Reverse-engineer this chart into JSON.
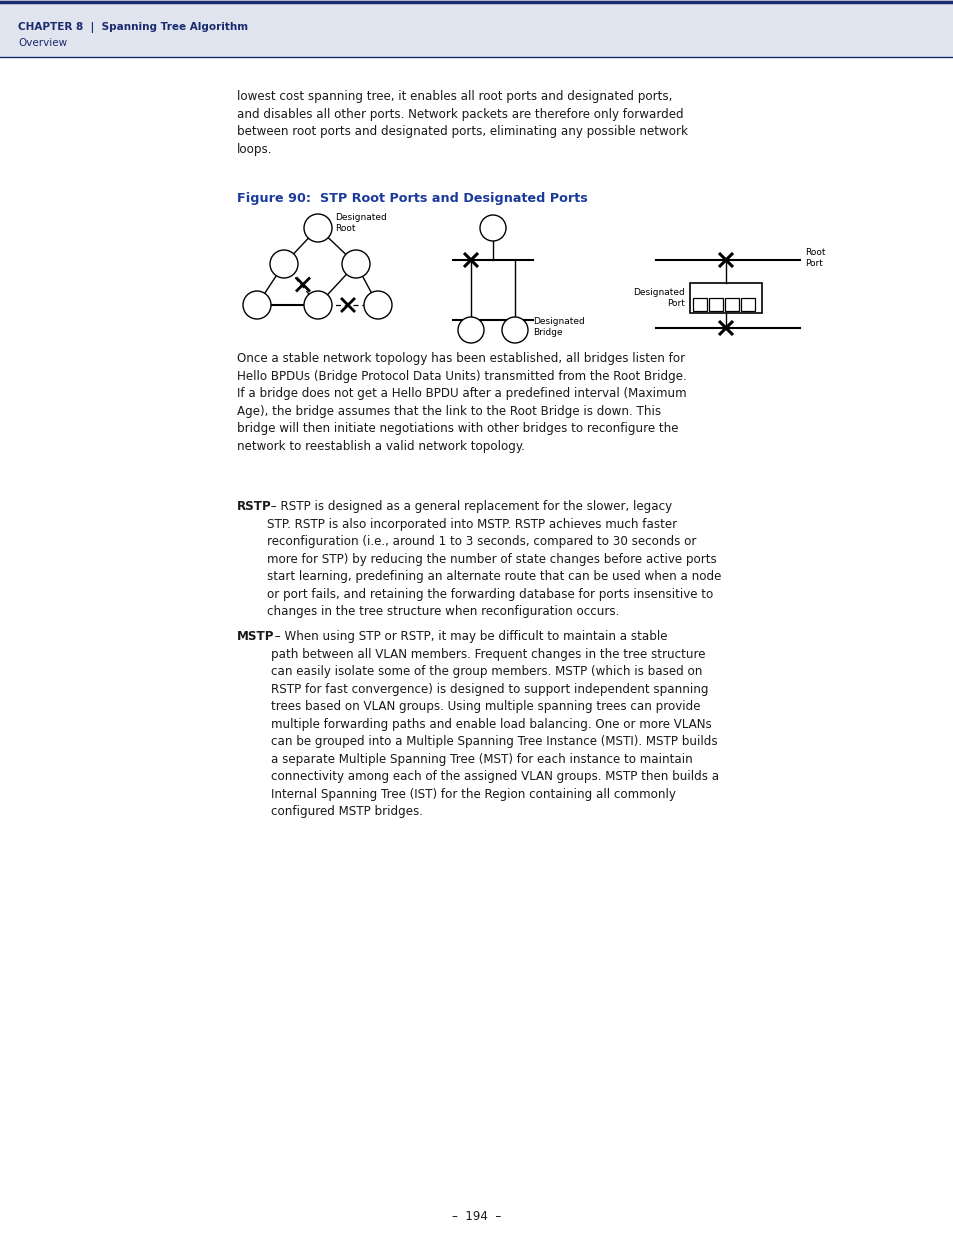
{
  "page_bg": "#ffffff",
  "header_bg": "#e0e4ee",
  "header_line_color": "#1a2a6e",
  "header_text_color": "#1a2a6e",
  "header_chapter": "CʟAPTER 8  |  Spanning Tree Algorithm",
  "header_overview": "Overview",
  "figure_title": "Figure 90:  STP Root Ports and Designated Ports",
  "figure_title_color": "#1a3a9c",
  "body_text_color": "#1a1a1a",
  "footer_text": "–  194  –",
  "para1": "lowest cost spanning tree, it enables all root ports and designated ports,\nand disables all other ports. Network packets are therefore only forwarded\nbetween root ports and designated ports, eliminating any possible network\nloops.",
  "para_between": "Once a stable network topology has been established, all bridges listen for\nHello BPDUs (Bridge Protocol Data Units) transmitted from the Root Bridge.\nIf a bridge does not get a Hello BPDU after a predefined interval (Maximum\nAge), the bridge assumes that the link to the Root Bridge is down. This\nbridge will then initiate negotiations with other bridges to reconfigure the\nnetwork to reestablish a valid network topology.",
  "para2_bold": "RSTP",
  "para2_rest": " – RSTP is designed as a general replacement for the slower, legacy\nSTP. RSTP is also incorporated into MSTP. RSTP achieves much faster\nreconfiguration (i.e., around 1 to 3 seconds, compared to 30 seconds or\nmore for STP) by reducing the number of state changes before active ports\nstart learning, predefining an alternate route that can be used when a node\nor port fails, and retaining the forwarding database for ports insensitive to\nchanges in the tree structure when reconfiguration occurs.",
  "para3_bold": "MSTP",
  "para3_rest": " – When using STP or RSTP, it may be difficult to maintain a stable\npath between all VLAN members. Frequent changes in the tree structure\ncan easily isolate some of the group members. MSTP (which is based on\nRSTP for fast convergence) is designed to support independent spanning\ntrees based on VLAN groups. Using multiple spanning trees can provide\nmultiple forwarding paths and enable load balancing. One or more VLANs\ncan be grouped into a Multiple Spanning Tree Instance (MSTI). MSTP builds\na separate Multiple Spanning Tree (MST) for each instance to maintain\nconnectivity among each of the assigned VLAN groups. MSTP then builds a\nInternal Spanning Tree (IST) for the Region containing all commonly\nconfigured MSTP bridges."
}
